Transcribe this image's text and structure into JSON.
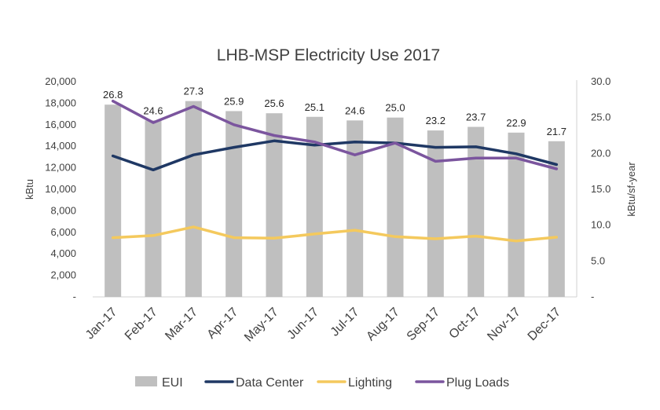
{
  "chart_data": {
    "type": "bar",
    "title": "LHB-MSP Electricity Use 2017",
    "categories": [
      "Jan-17",
      "Feb-17",
      "Mar-17",
      "Apr-17",
      "May-17",
      "Jun-17",
      "Jul-17",
      "Aug-17",
      "Sep-17",
      "Oct-17",
      "Nov-17",
      "Dec-17"
    ],
    "ylabel": "kBtu",
    "y2label": "kBtu/sf-year",
    "ylim": [
      0,
      20000
    ],
    "y2lim": [
      0,
      30
    ],
    "yticks": [
      "-",
      "2,000",
      "4,000",
      "6,000",
      "8,000",
      "10,000",
      "12,000",
      "14,000",
      "16,000",
      "18,000",
      "20,000"
    ],
    "y2ticks": [
      "-",
      "5.0",
      "10.0",
      "15.0",
      "20.0",
      "25.0",
      "30.0"
    ],
    "series": [
      {
        "name": "EUI",
        "kind": "bar",
        "axis": "right",
        "color": "#bfbfbf",
        "values": [
          26.8,
          24.6,
          27.3,
          25.9,
          25.6,
          25.1,
          24.6,
          25.0,
          23.2,
          23.7,
          22.9,
          21.7
        ],
        "labels": [
          "26.8",
          "24.6",
          "27.3",
          "25.9",
          "25.6",
          "25.1",
          "24.6",
          "25.0",
          "23.2",
          "23.7",
          "22.9",
          "21.7"
        ]
      },
      {
        "name": "Data Center",
        "kind": "line",
        "axis": "left",
        "color": "#1f3864",
        "values": [
          13100,
          11800,
          13200,
          13900,
          14500,
          14100,
          14400,
          14300,
          13900,
          13950,
          13300,
          12300
        ]
      },
      {
        "name": "Lighting",
        "kind": "line",
        "axis": "left",
        "color": "#f4c95d",
        "values": [
          5500,
          5700,
          6500,
          5500,
          5450,
          5850,
          6200,
          5600,
          5400,
          5650,
          5200,
          5550
        ]
      },
      {
        "name": "Plug Loads",
        "kind": "line",
        "axis": "left",
        "color": "#7b559e",
        "values": [
          18200,
          16200,
          17700,
          16000,
          15000,
          14400,
          13200,
          14300,
          12600,
          12900,
          12900,
          11900
        ]
      }
    ],
    "legend_position": "bottom"
  }
}
